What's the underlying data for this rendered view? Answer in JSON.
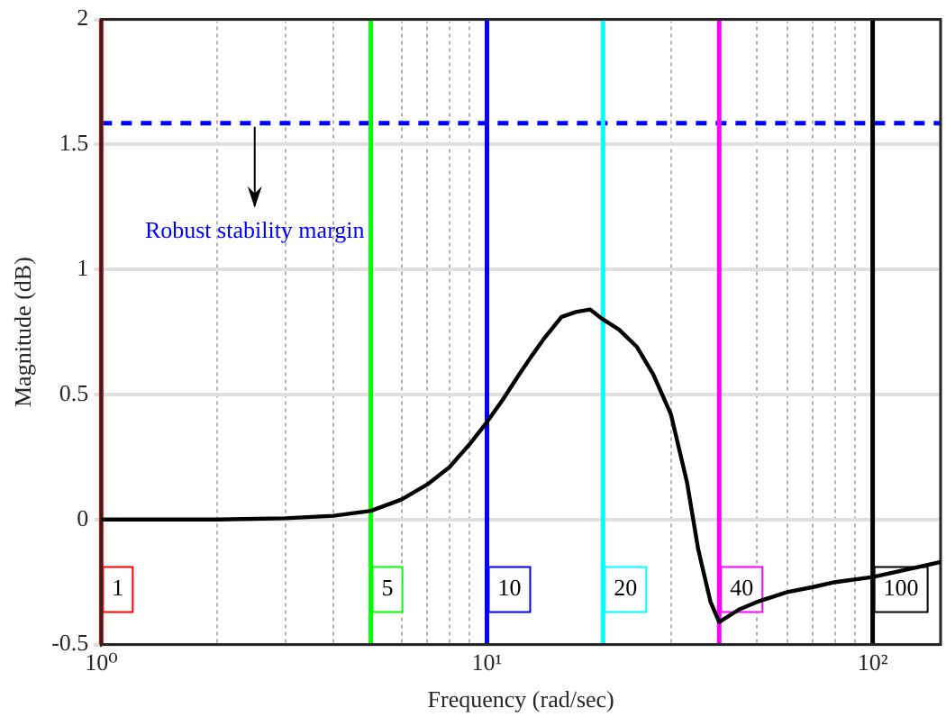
{
  "chart_data": {
    "type": "line",
    "xlabel": "Frequency (rad/sec)",
    "ylabel": "Magnitude (dB)",
    "log": "x",
    "grid": true,
    "xlim": [
      1,
      150
    ],
    "ylim": [
      -0.5,
      2
    ],
    "xticks": [
      {
        "value": 1,
        "label": "10⁰"
      },
      {
        "value": 2,
        "label": null
      },
      {
        "value": 3,
        "label": null
      },
      {
        "value": 4,
        "label": null
      },
      {
        "value": 5,
        "label": null
      },
      {
        "value": 6,
        "label": null
      },
      {
        "value": 7,
        "label": null
      },
      {
        "value": 8,
        "label": null
      },
      {
        "value": 9,
        "label": null
      },
      {
        "value": 10,
        "label": "10¹"
      },
      {
        "value": 20,
        "label": null
      },
      {
        "value": 30,
        "label": null
      },
      {
        "value": 40,
        "label": null
      },
      {
        "value": 50,
        "label": null
      },
      {
        "value": 60,
        "label": null
      },
      {
        "value": 70,
        "label": null
      },
      {
        "value": 80,
        "label": null
      },
      {
        "value": 90,
        "label": null
      },
      {
        "value": 100,
        "label": "10²"
      }
    ],
    "yticks": [
      -0.5,
      0,
      0.5,
      1,
      1.5,
      2
    ],
    "series": [
      {
        "color": "#000000",
        "x": [
          1,
          2,
          3,
          4,
          5,
          6,
          7,
          8,
          9,
          10,
          11,
          12,
          13,
          14,
          15.6,
          17,
          18.5,
          20,
          22,
          24.5,
          27,
          30,
          33,
          35.3,
          38,
          40,
          45,
          50,
          60,
          70,
          80,
          100,
          150
        ],
        "values": [
          0,
          0,
          0.005,
          0.015,
          0.035,
          0.08,
          0.14,
          0.21,
          0.3,
          0.39,
          0.48,
          0.57,
          0.65,
          0.72,
          0.81,
          0.83,
          0.84,
          0.8,
          0.76,
          0.69,
          0.58,
          0.42,
          0.15,
          -0.12,
          -0.33,
          -0.41,
          -0.36,
          -0.33,
          -0.29,
          -0.27,
          -0.25,
          -0.23,
          -0.17
        ]
      }
    ],
    "ref_lines": [
      {
        "axis": "y",
        "value": 1.585,
        "color": "#0000ff",
        "line_style": "dashed"
      },
      {
        "axis": "x",
        "value": 1,
        "label": "1",
        "color": "#ff0000"
      },
      {
        "axis": "x",
        "value": 5,
        "label": "5",
        "color": "#00ff00"
      },
      {
        "axis": "x",
        "value": 10,
        "label": "10",
        "color": "#0000ff"
      },
      {
        "axis": "x",
        "value": 20,
        "label": "20",
        "color": "#00ffff"
      },
      {
        "axis": "x",
        "value": 40,
        "label": "40",
        "color": "#ff00ff"
      },
      {
        "axis": "x",
        "value": 100,
        "label": "100",
        "color": "#000000"
      }
    ],
    "annotations": [
      {
        "text": "Robust stability margin",
        "x": 2.5,
        "y": 1.585
      }
    ]
  }
}
